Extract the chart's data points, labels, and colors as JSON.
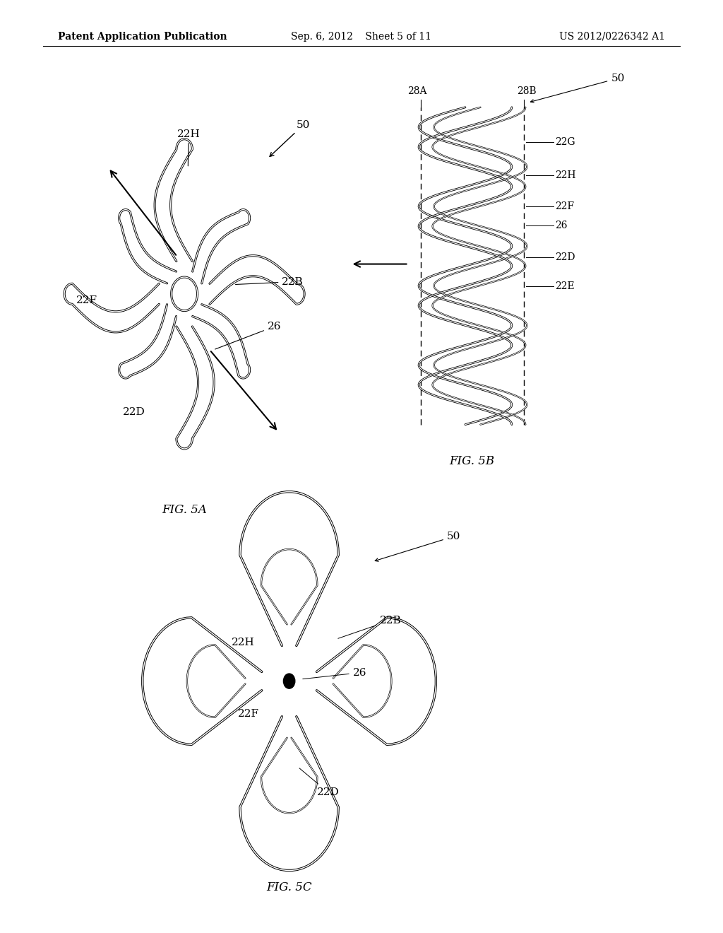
{
  "background_color": "#ffffff",
  "header_left": "Patent Application Publication",
  "header_center": "Sep. 6, 2012    Sheet 5 of 11",
  "header_right": "US 2012/0226342 A1",
  "fig5a_label": "FIG. 5A",
  "fig5b_label": "FIG. 5B",
  "fig5c_label": "FIG. 5C",
  "line_color": "#000000",
  "text_color": "#000000",
  "font_size_header": 10,
  "font_size_label": 11,
  "font_size_fig": 12
}
